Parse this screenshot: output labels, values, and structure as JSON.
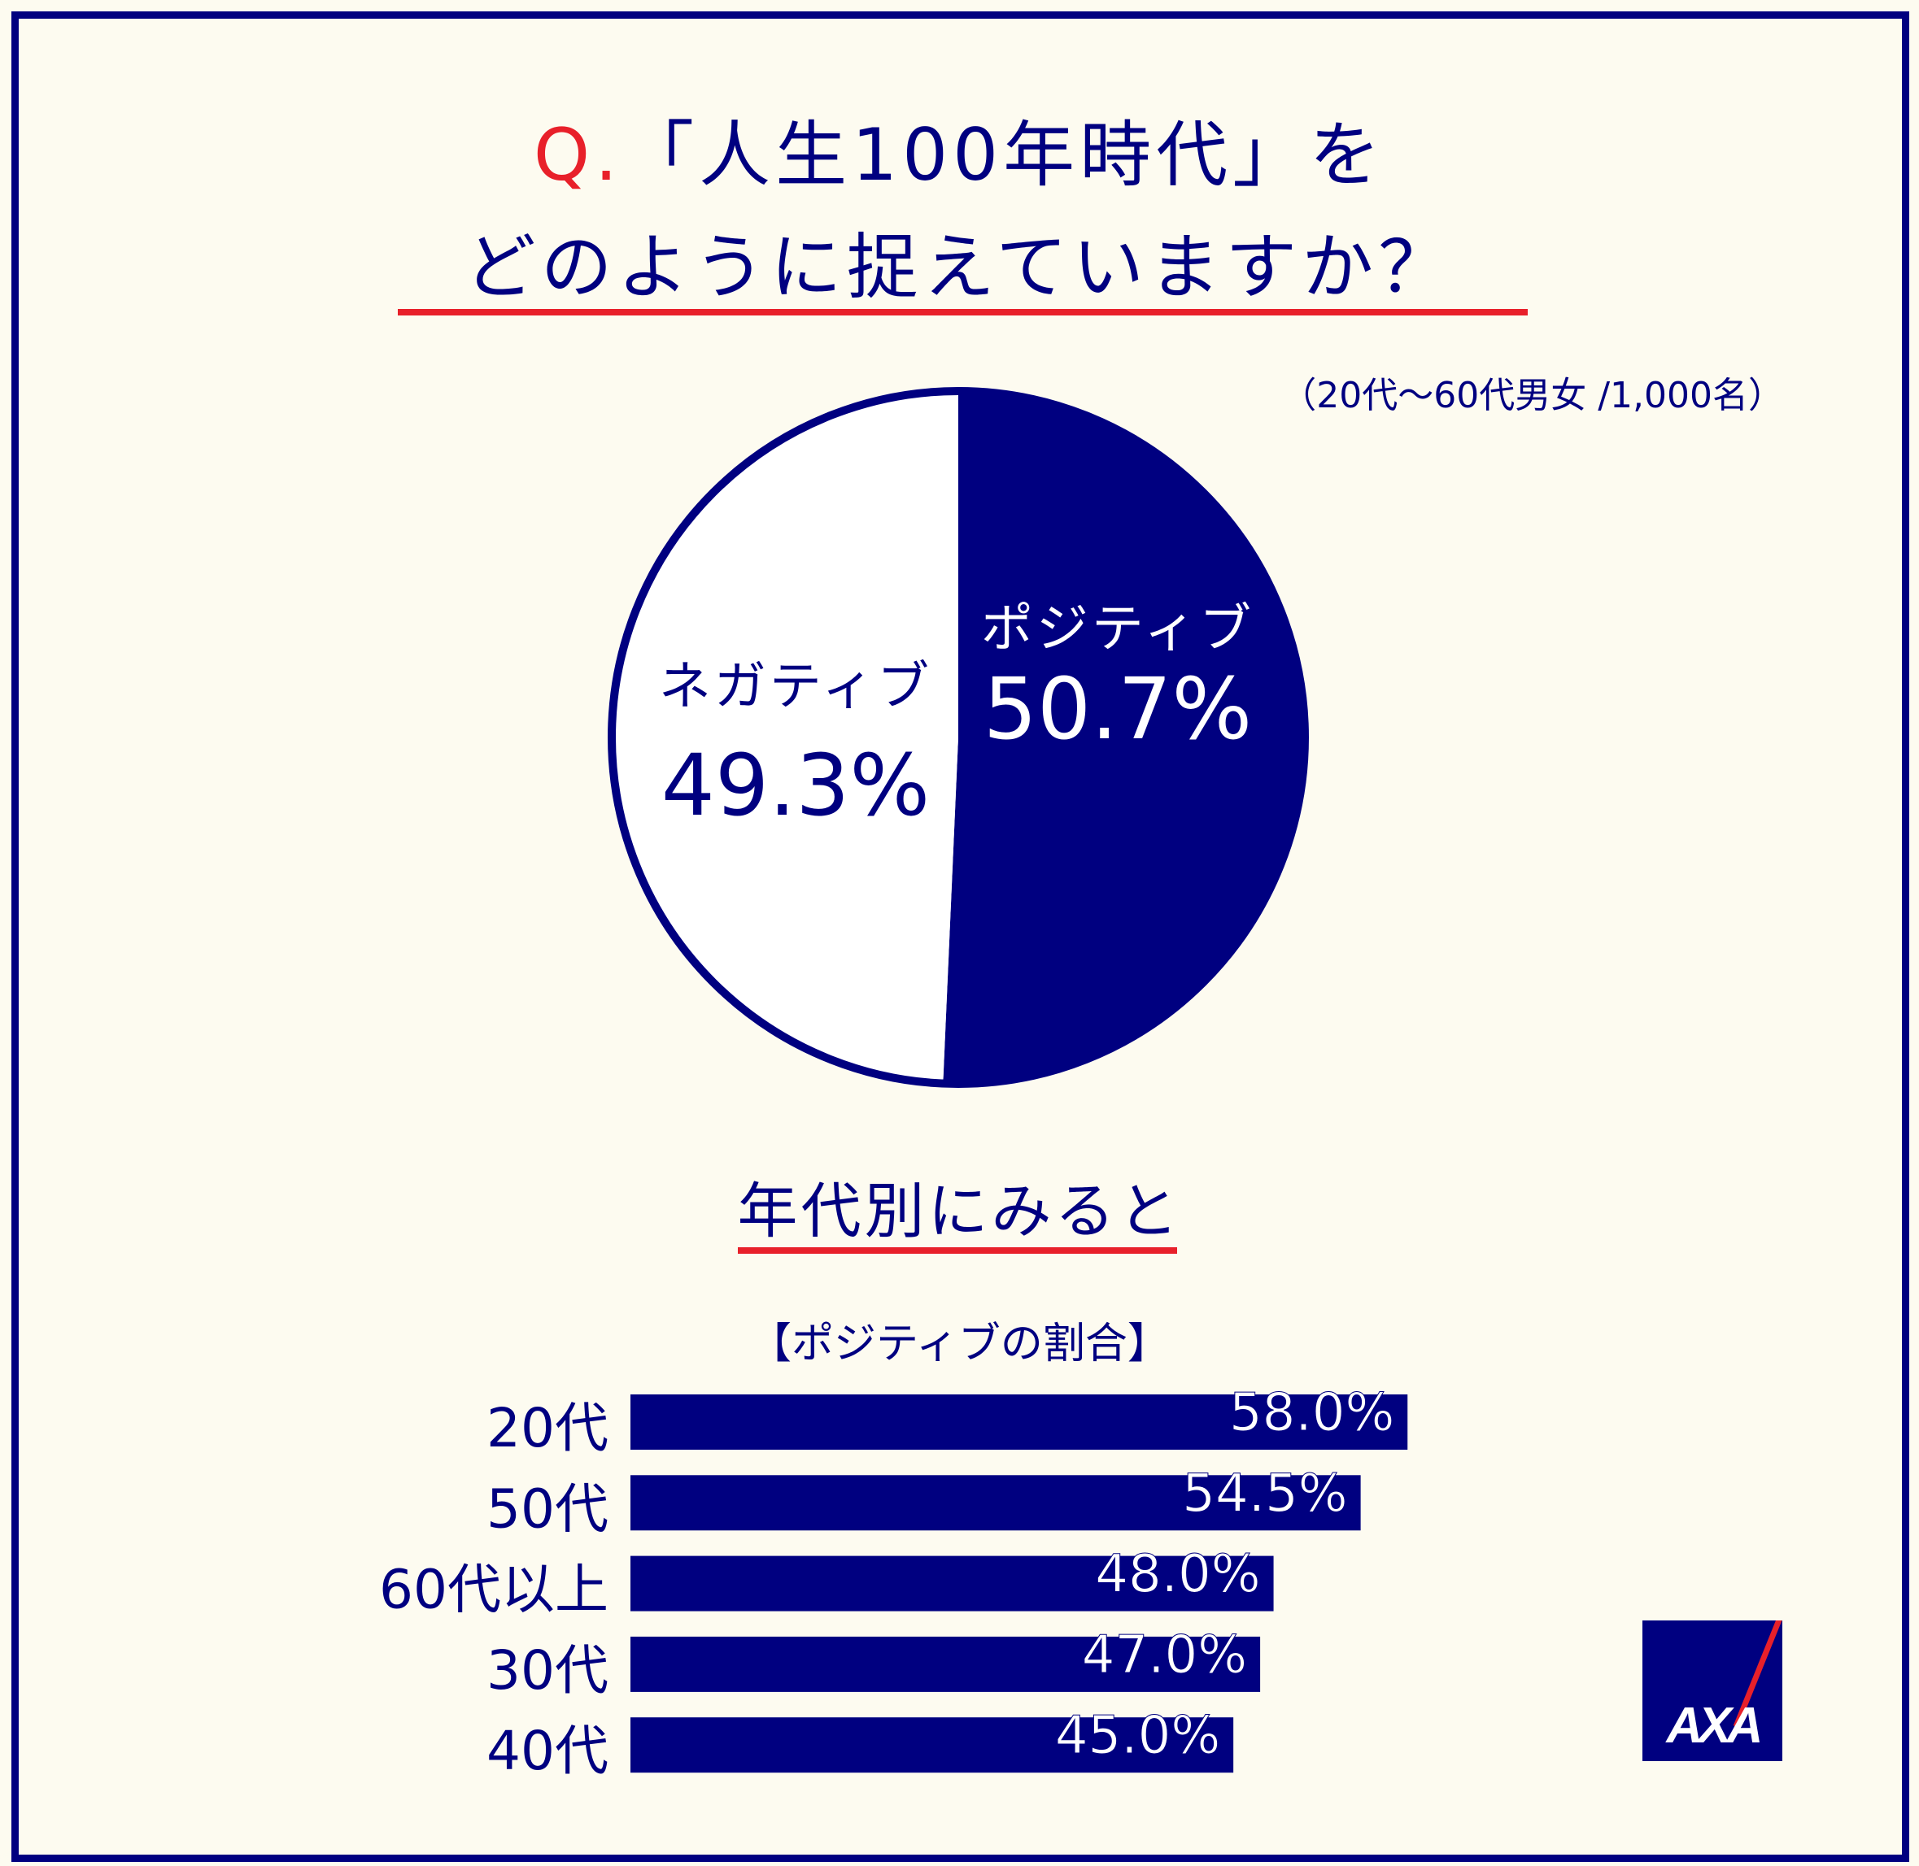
{
  "title": {
    "q_prefix": "Q.",
    "line1": "「人生100年時代」を",
    "line2": "どのように捉えていますか？"
  },
  "sample_note": "（20代〜60代男女 /1,000名）",
  "colors": {
    "navy": "#000080",
    "red": "#e8202a",
    "background": "#fdfbf0",
    "white": "#ffffff"
  },
  "logo": "AXA",
  "chart_data": [
    {
      "type": "pie",
      "slices": [
        {
          "label": "ポジティブ",
          "value": 50.7,
          "value_label": "50.7%",
          "color": "#000080"
        },
        {
          "label": "ネガティブ",
          "value": 49.3,
          "value_label": "49.3%",
          "color": "#ffffff"
        }
      ]
    },
    {
      "type": "bar",
      "orientation": "horizontal",
      "heading": "年代別にみると",
      "title": "【ポジティブの割合】",
      "categories": [
        "20代",
        "50代",
        "60代以上",
        "30代",
        "40代"
      ],
      "values": [
        58.0,
        54.5,
        48.0,
        47.0,
        45.0
      ],
      "value_labels": [
        "58.0%",
        "54.5%",
        "48.0%",
        "47.0%",
        "45.0%"
      ],
      "color": "#000080"
    }
  ]
}
